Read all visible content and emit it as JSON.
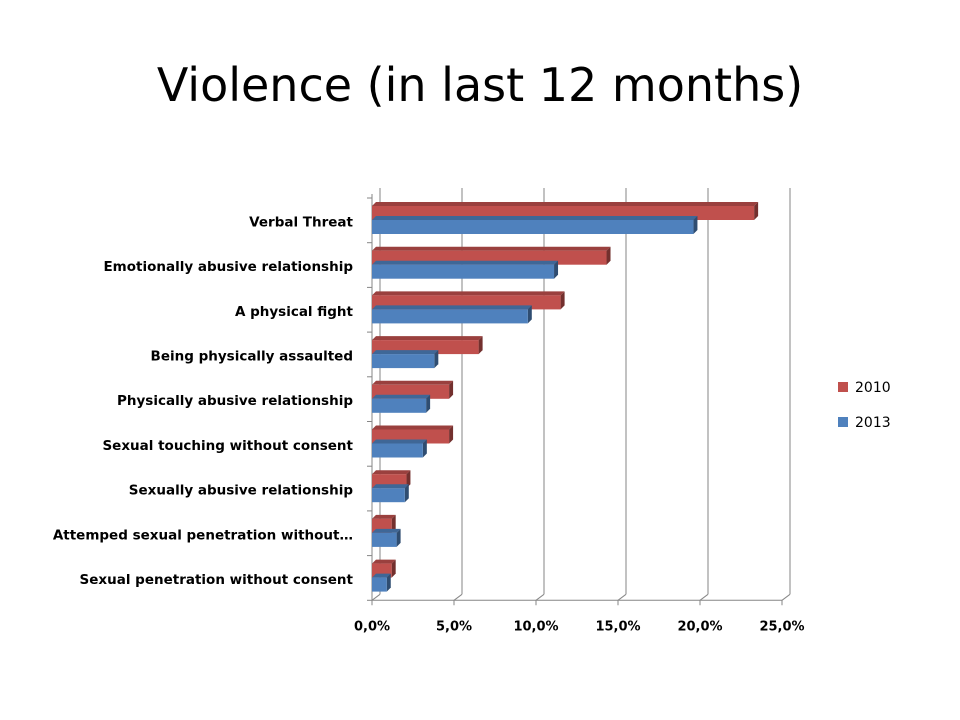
{
  "title": "Violence (in last 12 months)",
  "colors": {
    "series_2010": "#c0504d",
    "series_2013": "#4f81bd",
    "gridline": "#868686",
    "axis": "#868686"
  },
  "chart_data": {
    "type": "bar",
    "orientation": "horizontal",
    "style": "3d-clustered",
    "title": "Violence (in last 12 months)",
    "categories": [
      "Verbal Threat",
      "Emotionally abusive relationship",
      "A physical fight",
      "Being physically assaulted",
      "Physically abusive relationship",
      "Sexual touching without consent",
      "Sexually abusive relationship",
      "Attemped sexual penetration without…",
      "Sexual penetration without consent"
    ],
    "series": [
      {
        "name": "2010",
        "values": [
          23.3,
          14.3,
          11.5,
          6.5,
          4.7,
          4.7,
          2.1,
          1.2,
          1.2
        ]
      },
      {
        "name": "2013",
        "values": [
          19.6,
          11.1,
          9.5,
          3.8,
          3.3,
          3.1,
          2.0,
          1.5,
          0.9
        ]
      }
    ],
    "xlim": [
      0,
      25
    ],
    "xticks": [
      0,
      5,
      10,
      15,
      20,
      25
    ],
    "xtick_labels": [
      "0,0%",
      "5,0%",
      "10,0%",
      "15,0%",
      "20,0%",
      "25,0%"
    ],
    "grid": true,
    "legend_position": "right"
  }
}
